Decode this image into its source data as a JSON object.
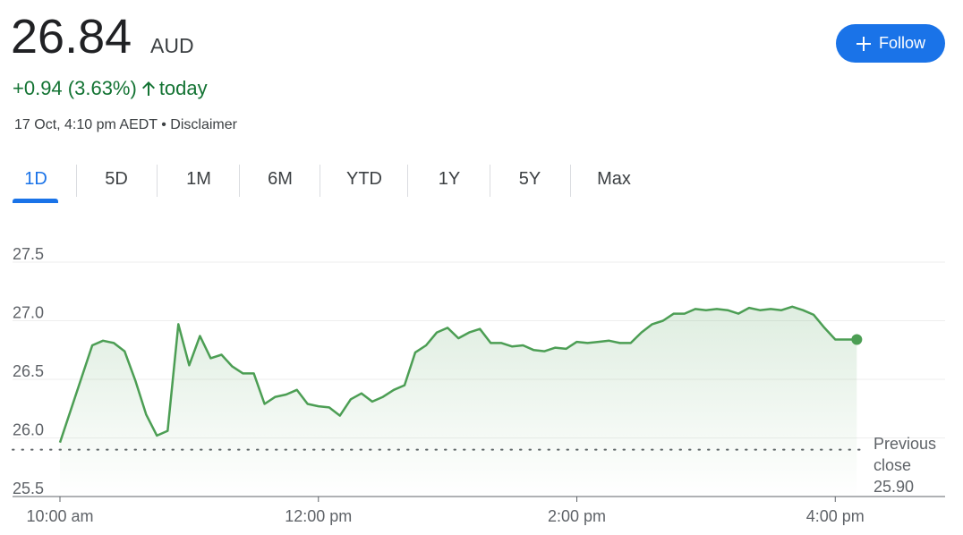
{
  "quote": {
    "price": "26.84",
    "currency": "AUD",
    "change": "+0.94 (3.63%)",
    "period": "today",
    "timestamp": "17 Oct, 4:10 pm AEDT",
    "disclaimer": "Disclaimer"
  },
  "follow_button": "Follow",
  "tabs": [
    "1D",
    "5D",
    "1M",
    "6M",
    "YTD",
    "1Y",
    "5Y",
    "Max"
  ],
  "selected_tab": 0,
  "chart_data": {
    "type": "line",
    "color": "#4c9e54",
    "x": [
      600,
      615,
      620,
      625,
      630,
      635,
      640,
      645,
      650,
      655,
      660,
      665,
      670,
      675,
      680,
      685,
      690,
      695,
      700,
      705,
      710,
      715,
      720,
      725,
      730,
      735,
      740,
      745,
      750,
      755,
      760,
      765,
      770,
      775,
      780,
      785,
      790,
      795,
      800,
      805,
      810,
      815,
      820,
      825,
      830,
      835,
      840,
      845,
      850,
      855,
      860,
      865,
      870,
      875,
      880,
      885,
      890,
      895,
      900,
      905,
      910,
      915,
      920,
      925,
      930,
      935,
      940,
      945,
      950,
      955,
      960,
      965,
      970
    ],
    "values": [
      25.96,
      26.79,
      26.83,
      26.81,
      26.74,
      26.49,
      26.2,
      26.02,
      26.06,
      26.97,
      26.62,
      26.87,
      26.68,
      26.71,
      26.61,
      26.55,
      26.55,
      26.29,
      26.35,
      26.37,
      26.41,
      26.29,
      26.27,
      26.26,
      26.19,
      26.33,
      26.38,
      26.31,
      26.35,
      26.41,
      26.45,
      26.73,
      26.79,
      26.9,
      26.94,
      26.85,
      26.9,
      26.93,
      26.81,
      26.81,
      26.78,
      26.79,
      26.75,
      26.74,
      26.77,
      26.76,
      26.82,
      26.81,
      26.82,
      26.83,
      26.81,
      26.81,
      26.9,
      26.97,
      27.0,
      27.06,
      27.06,
      27.1,
      27.09,
      27.1,
      27.09,
      27.06,
      27.11,
      27.09,
      27.1,
      27.09,
      27.12,
      27.09,
      27.05,
      26.94,
      26.84,
      26.84,
      26.84
    ],
    "xlim": [
      600,
      1011
    ],
    "xticks": [
      {
        "value": 600,
        "label": "10:00 am"
      },
      {
        "value": 720,
        "label": "12:00 pm"
      },
      {
        "value": 840,
        "label": "2:00 pm"
      },
      {
        "value": 960,
        "label": "4:00 pm"
      }
    ],
    "ylim": [
      25.5,
      27.5
    ],
    "yticks": [
      25.5,
      {
        "value": 26,
        "label": "26.0"
      },
      26.5,
      {
        "value": 27,
        "label": "27.0"
      },
      27.5
    ],
    "grid": true,
    "previous_close": {
      "value": 25.9,
      "label": "25.90"
    },
    "previous_close_text": "Previous close"
  }
}
